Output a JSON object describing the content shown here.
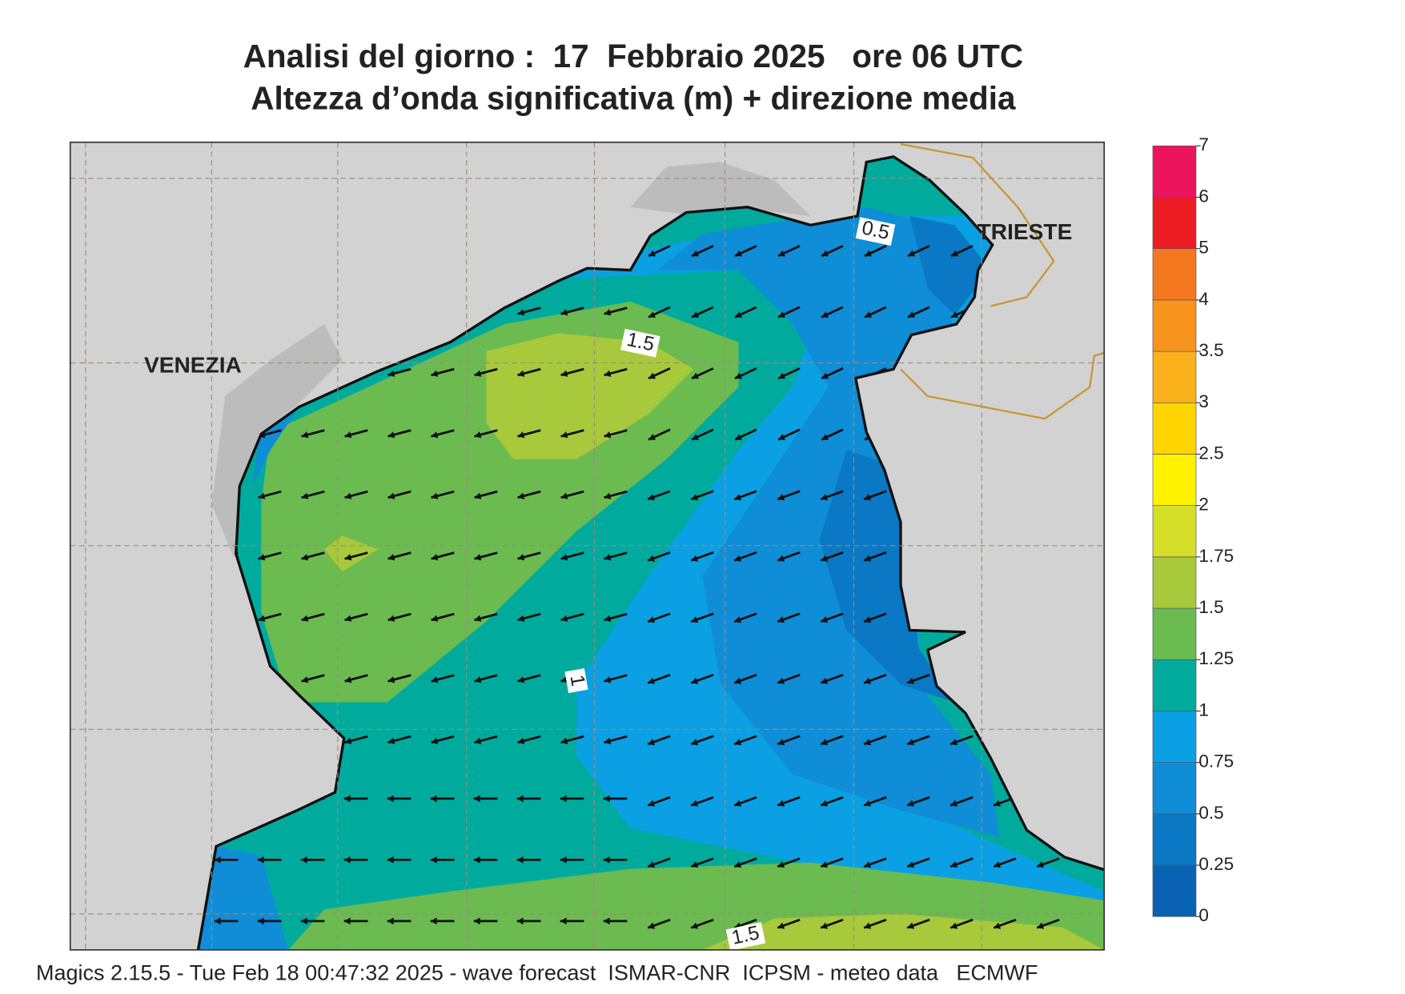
{
  "header": {
    "title": "Analisi del giorno :  17  Febbraio 2025   ore 06 UTC",
    "subtitle": "Altezza d’onda significativa (m) + direzione media"
  },
  "map": {
    "places": [
      "VENEZIA",
      "TRIESTE"
    ],
    "contour_labels": [
      "0.5",
      "1.5",
      "1",
      "1.5"
    ]
  },
  "legend": {
    "levels": [
      0,
      0.25,
      0.5,
      0.75,
      1,
      1.25,
      1.5,
      1.75,
      2,
      2.5,
      3,
      3.5,
      4,
      5,
      6,
      7
    ],
    "colors": [
      "#0a63b2",
      "#0a78c4",
      "#0f8dd6",
      "#0aa0e3",
      "#00ab9e",
      "#6bbb50",
      "#a7c93b",
      "#d5df2a",
      "#fff200",
      "#ffd400",
      "#fbb11b",
      "#f7941d",
      "#f47820",
      "#ec1c24",
      "#ec145c"
    ]
  },
  "footer": "Magics 2.15.5 - Tue Feb 18 00:47:32 2025 - wave forecast  ISMAR-CNR  ICPSM - meteo data   ECMWF"
}
